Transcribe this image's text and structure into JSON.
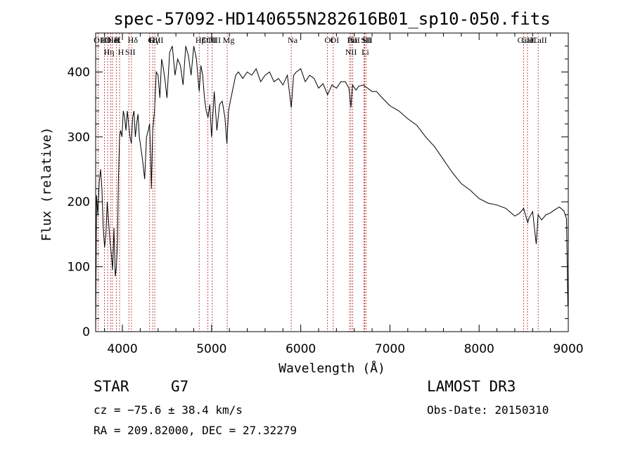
{
  "chart_data": {
    "type": "line",
    "title": "spec-57092-HD140655N282616B01_sp10-050.fits",
    "xlabel": "Wavelength (Å)",
    "ylabel": "Flux (relative)",
    "xlim": [
      3700,
      9000
    ],
    "ylim": [
      0,
      460
    ],
    "x_ticks": [
      4000,
      5000,
      6000,
      7000,
      8000,
      9000
    ],
    "y_ticks": [
      0,
      100,
      200,
      300,
      400
    ],
    "series": [
      {
        "name": "spectrum",
        "x": [
          3700,
          3710,
          3725,
          3740,
          3755,
          3770,
          3785,
          3800,
          3815,
          3830,
          3845,
          3860,
          3875,
          3890,
          3905,
          3920,
          3933,
          3945,
          3955,
          3968,
          3980,
          3995,
          4010,
          4025,
          4040,
          4055,
          4070,
          4085,
          4101,
          4115,
          4130,
          4145,
          4160,
          4175,
          4190,
          4210,
          4230,
          4250,
          4270,
          4290,
          4305,
          4315,
          4325,
          4340,
          4360,
          4380,
          4400,
          4420,
          4440,
          4460,
          4480,
          4500,
          4530,
          4560,
          4590,
          4620,
          4650,
          4680,
          4710,
          4740,
          4770,
          4800,
          4830,
          4861,
          4880,
          4900,
          4920,
          4940,
          4960,
          4980,
          5000,
          5030,
          5060,
          5090,
          5120,
          5150,
          5172,
          5190,
          5210,
          5240,
          5270,
          5300,
          5350,
          5400,
          5450,
          5500,
          5550,
          5600,
          5650,
          5700,
          5750,
          5800,
          5850,
          5893,
          5920,
          5950,
          6000,
          6050,
          6100,
          6150,
          6200,
          6250,
          6300,
          6350,
          6400,
          6450,
          6500,
          6540,
          6563,
          6580,
          6620,
          6650,
          6700,
          6750,
          6800,
          6850,
          6900,
          6950,
          7000,
          7100,
          7200,
          7300,
          7400,
          7500,
          7600,
          7700,
          7800,
          7900,
          8000,
          8100,
          8200,
          8300,
          8400,
          8450,
          8500,
          8530,
          8545,
          8560,
          8600,
          8640,
          8662,
          8700,
          8750,
          8800,
          8850,
          8900,
          8950,
          8980,
          8995
        ],
        "values": [
          0,
          210,
          180,
          230,
          250,
          220,
          160,
          130,
          150,
          200,
          170,
          140,
          120,
          95,
          160,
          85,
          100,
          140,
          230,
          300,
          310,
          300,
          340,
          330,
          310,
          340,
          320,
          300,
          290,
          330,
          340,
          300,
          320,
          335,
          300,
          280,
          260,
          235,
          300,
          310,
          320,
          275,
          220,
          310,
          340,
          400,
          395,
          360,
          420,
          405,
          385,
          360,
          430,
          440,
          395,
          420,
          410,
          380,
          440,
          425,
          395,
          440,
          420,
          370,
          410,
          395,
          360,
          340,
          330,
          350,
          300,
          370,
          310,
          350,
          355,
          330,
          290,
          340,
          355,
          375,
          395,
          400,
          390,
          400,
          395,
          405,
          385,
          395,
          400,
          385,
          390,
          380,
          395,
          345,
          395,
          400,
          405,
          385,
          395,
          390,
          375,
          382,
          365,
          380,
          375,
          385,
          385,
          375,
          345,
          380,
          372,
          378,
          380,
          375,
          370,
          370,
          362,
          355,
          348,
          340,
          328,
          318,
          300,
          285,
          265,
          245,
          228,
          218,
          205,
          198,
          195,
          190,
          178,
          182,
          190,
          175,
          168,
          175,
          185,
          135,
          180,
          172,
          180,
          183,
          188,
          192,
          186,
          174,
          40
        ]
      }
    ],
    "lines": [
      {
        "name": "Hθ",
        "x": 3798
      },
      {
        "name": "K",
        "x": 3934
      },
      {
        "name": "Hδ",
        "x": 4101
      },
      {
        "name": "OII",
        "x": 3727
      },
      {
        "name": "HeI",
        "x": 3889
      },
      {
        "name": "SII",
        "x": 4072
      },
      {
        "name": "OIII",
        "x": 3869
      },
      {
        "name": "Hη",
        "x": 3835
      },
      {
        "name": "H",
        "x": 3968
      },
      {
        "name": "OIII",
        "x": 4363
      },
      {
        "name": "Hγ",
        "x": 4340
      },
      {
        "name": "G",
        "x": 4305
      },
      {
        "name": "Hβ",
        "x": 4861
      },
      {
        "name": "OIII",
        "x": 4959
      },
      {
        "name": "OIII",
        "x": 5007
      },
      {
        "name": "Mg",
        "x": 5175
      },
      {
        "name": "Na",
        "x": 5893
      },
      {
        "name": "OI",
        "x": 6300
      },
      {
        "name": "OI",
        "x": 6364
      },
      {
        "name": "Hα",
        "x": 6563
      },
      {
        "name": "NII",
        "x": 6548
      },
      {
        "name": "NII",
        "x": 6583
      },
      {
        "name": "SII",
        "x": 6717
      },
      {
        "name": "SII",
        "x": 6731
      },
      {
        "name": "Li",
        "x": 6708
      },
      {
        "name": "CaII",
        "x": 8498
      },
      {
        "name": "CaII",
        "x": 8542
      },
      {
        "name": "CaII",
        "x": 8662
      }
    ]
  },
  "info": {
    "object_class": "STAR",
    "subclass": "G7",
    "survey": "LAMOST DR3",
    "cz": "cz = −75.6 ± 38.4 km/s",
    "obs_date": "Obs-Date: 20150310",
    "radec": "RA = 209.82000, DEC =  27.32279"
  }
}
